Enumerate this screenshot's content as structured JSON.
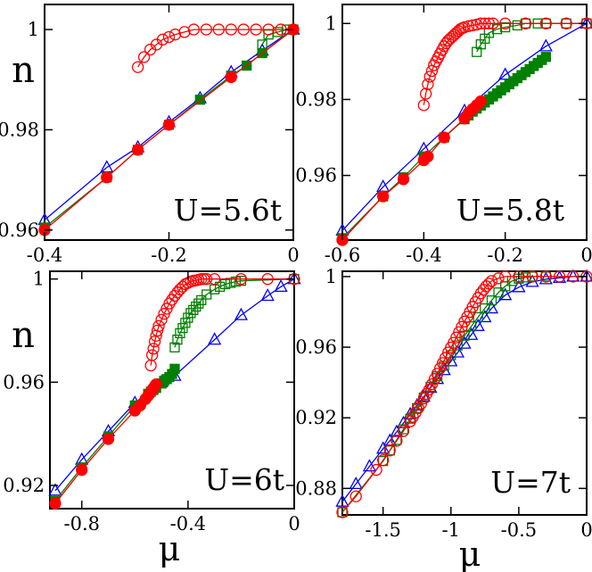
{
  "chart_data": [
    {
      "type": "line",
      "label": "U=5.6t",
      "xlim": [
        -0.4,
        0
      ],
      "ylim": [
        0.958,
        1.005
      ],
      "xticks": [
        -0.4,
        -0.2,
        0
      ],
      "xtick_labels": [
        "-0.4",
        "-0.2",
        "0"
      ],
      "yticks": [
        0.96,
        0.98,
        1.0
      ],
      "ytick_labels": [
        "0.96",
        "0.98",
        "1"
      ],
      "ylabel": "n",
      "xlabel": "",
      "series": [
        {
          "name": "blue open triangles",
          "color": "#0000ff",
          "marker": "triangle",
          "filled": false,
          "x": [
            -0.4,
            -0.3,
            -0.25,
            -0.2,
            -0.15,
            -0.1,
            -0.05,
            0
          ],
          "y": [
            0.962,
            0.9725,
            0.9765,
            0.9815,
            0.9863,
            0.9915,
            0.9958,
            1.0
          ]
        },
        {
          "name": "green filled squares",
          "color": "#008000",
          "marker": "square",
          "filled": true,
          "x": [
            -0.4,
            -0.3,
            -0.25,
            -0.2,
            -0.15,
            -0.1,
            -0.075,
            -0.05,
            0
          ],
          "y": [
            0.9605,
            0.9705,
            0.976,
            0.981,
            0.986,
            0.9908,
            0.9928,
            0.9953,
            1.0
          ]
        },
        {
          "name": "green open squares",
          "color": "#008000",
          "marker": "square",
          "filled": false,
          "x": [
            -0.05,
            -0.04,
            -0.025,
            -0.01,
            0
          ],
          "y": [
            0.997,
            0.999,
            0.9995,
            1.0,
            1.0
          ]
        },
        {
          "name": "red filled circles",
          "color": "#ff0000",
          "marker": "circle",
          "filled": true,
          "x": [
            -0.4,
            -0.3,
            -0.25,
            -0.2,
            -0.1,
            0
          ],
          "y": [
            0.96,
            0.9705,
            0.976,
            0.981,
            0.9905,
            1.0
          ]
        },
        {
          "name": "red open circles",
          "color": "#ff0000",
          "marker": "circle",
          "filled": false,
          "x": [
            -0.25,
            -0.24,
            -0.23,
            -0.22,
            -0.21,
            -0.2,
            -0.19,
            -0.175,
            -0.16,
            -0.14,
            -0.12,
            -0.1,
            -0.08,
            -0.06,
            -0.04,
            -0.02,
            0
          ],
          "y": [
            0.9925,
            0.9945,
            0.996,
            0.997,
            0.998,
            0.9985,
            0.999,
            0.9995,
            1.0,
            1.0,
            1.0,
            1.0,
            1.0,
            1.0,
            1.0,
            1.0,
            1.0
          ]
        }
      ]
    },
    {
      "type": "line",
      "label": "U=5.8t",
      "xlim": [
        -0.6,
        0
      ],
      "ylim": [
        0.943,
        1.005
      ],
      "xticks": [
        -0.6,
        -0.4,
        -0.2,
        0
      ],
      "xtick_labels": [
        "-0.6",
        "-0.4",
        "-0.2",
        "0"
      ],
      "yticks": [
        0.96,
        0.98,
        1.0
      ],
      "ytick_labels": [
        "0.96",
        "0.98",
        "1"
      ],
      "ylabel": "",
      "xlabel": "",
      "series": [
        {
          "name": "blue open triangles",
          "color": "#0000ff",
          "marker": "triangle",
          "filled": false,
          "x": [
            -0.6,
            -0.5,
            -0.4,
            -0.3,
            -0.2,
            -0.1,
            0
          ],
          "y": [
            0.9455,
            0.957,
            0.967,
            0.977,
            0.9865,
            0.994,
            1.0
          ]
        },
        {
          "name": "green filled squares",
          "color": "#008000",
          "marker": "square",
          "filled": true,
          "x": [
            -0.6,
            -0.5,
            -0.45,
            -0.4,
            -0.35,
            -0.3,
            -0.29,
            -0.28,
            -0.27,
            -0.26,
            -0.25,
            -0.24,
            -0.23,
            -0.22,
            -0.21,
            -0.2,
            -0.19,
            -0.18,
            -0.17,
            -0.16,
            -0.15,
            -0.14,
            -0.13,
            -0.12,
            -0.11,
            -0.1
          ],
          "y": [
            0.9435,
            0.9545,
            0.9595,
            0.965,
            0.97,
            0.9748,
            0.9758,
            0.9768,
            0.9776,
            0.9784,
            0.9792,
            0.98,
            0.9808,
            0.9816,
            0.9824,
            0.9832,
            0.984,
            0.9848,
            0.9856,
            0.9864,
            0.9872,
            0.988,
            0.9888,
            0.9896,
            0.9904,
            0.9912
          ]
        },
        {
          "name": "green open squares",
          "color": "#008000",
          "marker": "square",
          "filled": false,
          "x": [
            -0.27,
            -0.26,
            -0.25,
            -0.24,
            -0.22,
            -0.2,
            -0.17,
            -0.15,
            -0.12,
            -0.1,
            -0.05,
            0
          ],
          "y": [
            0.9925,
            0.9945,
            0.996,
            0.9975,
            0.9985,
            0.999,
            0.9995,
            1.0,
            1.0,
            1.0,
            1.0,
            1.0
          ]
        },
        {
          "name": "red filled circles",
          "color": "#ff0000",
          "marker": "circle",
          "filled": true,
          "x": [
            -0.6,
            -0.5,
            -0.45,
            -0.4,
            -0.39,
            -0.35,
            -0.3,
            -0.29,
            -0.28,
            -0.27,
            -0.26
          ],
          "y": [
            0.943,
            0.9545,
            0.959,
            0.964,
            0.965,
            0.97,
            0.975,
            0.9765,
            0.9775,
            0.9785,
            0.9795
          ]
        },
        {
          "name": "red open circles",
          "color": "#ff0000",
          "marker": "circle",
          "filled": false,
          "x": [
            -0.4,
            -0.395,
            -0.39,
            -0.385,
            -0.38,
            -0.375,
            -0.37,
            -0.365,
            -0.36,
            -0.355,
            -0.35,
            -0.345,
            -0.34,
            -0.335,
            -0.33,
            -0.325,
            -0.32,
            -0.315,
            -0.31,
            -0.305,
            -0.3,
            -0.29,
            -0.28,
            -0.27,
            -0.26,
            -0.25,
            -0.24,
            -0.23,
            -0.2,
            -0.15,
            -0.1,
            -0.05,
            0
          ],
          "y": [
            0.9785,
            0.9815,
            0.984,
            0.986,
            0.9875,
            0.989,
            0.99,
            0.991,
            0.992,
            0.993,
            0.994,
            0.9948,
            0.9955,
            0.996,
            0.9965,
            0.997,
            0.9975,
            0.998,
            0.9985,
            0.9988,
            0.999,
            0.9993,
            0.9995,
            0.9997,
            1.0,
            1.0,
            1.0,
            1.0,
            1.0,
            1.0,
            1.0,
            1.0,
            1.0
          ]
        }
      ]
    },
    {
      "type": "line",
      "label": "U=6t",
      "xlim": [
        -0.92,
        0
      ],
      "ylim": [
        0.911,
        1.003
      ],
      "xticks": [
        -0.8,
        -0.4,
        0
      ],
      "xtick_labels": [
        "-0.8",
        "-0.4",
        "0"
      ],
      "yticks": [
        0.92,
        0.96,
        1.0
      ],
      "ytick_labels": [
        "0.92",
        "0.96",
        "1"
      ],
      "ylabel": "n",
      "xlabel": "μ",
      "series": [
        {
          "name": "blue open triangles",
          "color": "#0000ff",
          "marker": "triangle",
          "filled": false,
          "x": [
            -0.9,
            -0.8,
            -0.7,
            -0.6,
            -0.5,
            -0.45,
            -0.3,
            -0.2,
            -0.1,
            -0.05,
            0
          ],
          "y": [
            0.918,
            0.93,
            0.941,
            0.952,
            0.96,
            0.9625,
            0.9765,
            0.986,
            0.9935,
            0.997,
            1.0
          ]
        },
        {
          "name": "green filled squares",
          "color": "#008000",
          "marker": "square",
          "filled": true,
          "x": [
            -0.9,
            -0.8,
            -0.7,
            -0.6,
            -0.55,
            -0.54,
            -0.53,
            -0.52,
            -0.5,
            -0.49,
            -0.48,
            -0.47,
            -0.46,
            -0.45
          ],
          "y": [
            0.914,
            0.927,
            0.939,
            0.951,
            0.9555,
            0.9563,
            0.957,
            0.9578,
            0.9595,
            0.9605,
            0.9612,
            0.962,
            0.9632,
            0.9652
          ]
        },
        {
          "name": "green open squares",
          "color": "#008000",
          "marker": "square",
          "filled": false,
          "x": [
            -0.45,
            -0.44,
            -0.43,
            -0.42,
            -0.41,
            -0.4,
            -0.39,
            -0.38,
            -0.37,
            -0.36,
            -0.35,
            -0.33,
            -0.3,
            -0.28,
            -0.26,
            -0.24,
            -0.22,
            -0.2,
            0
          ],
          "y": [
            0.9735,
            0.9765,
            0.979,
            0.981,
            0.983,
            0.985,
            0.9868,
            0.988,
            0.9893,
            0.9905,
            0.9918,
            0.994,
            0.996,
            0.997,
            0.998,
            0.9985,
            0.999,
            0.9993,
            1.0
          ]
        },
        {
          "name": "red filled circles",
          "color": "#ff0000",
          "marker": "circle",
          "filled": true,
          "x": [
            -0.9,
            -0.8,
            -0.7,
            -0.6,
            -0.58,
            -0.56,
            -0.55,
            -0.545,
            -0.54,
            -0.535,
            -0.53,
            -0.525,
            -0.52
          ],
          "y": [
            0.913,
            0.926,
            0.938,
            0.949,
            0.951,
            0.9535,
            0.9548,
            0.9555,
            0.9563,
            0.957,
            0.9577,
            0.9585,
            0.9592
          ]
        },
        {
          "name": "red open circles",
          "color": "#ff0000",
          "marker": "circle",
          "filled": false,
          "x": [
            -0.54,
            -0.535,
            -0.53,
            -0.525,
            -0.52,
            -0.515,
            -0.51,
            -0.5,
            -0.49,
            -0.48,
            -0.47,
            -0.46,
            -0.45,
            -0.44,
            -0.43,
            -0.42,
            -0.41,
            -0.4,
            -0.39,
            -0.38,
            -0.37,
            -0.36,
            -0.35,
            -0.34,
            -0.33,
            -0.3,
            -0.2,
            -0.1,
            0
          ],
          "y": [
            0.9665,
            0.9705,
            0.973,
            0.9758,
            0.978,
            0.98,
            0.9818,
            0.9842,
            0.9865,
            0.9885,
            0.9905,
            0.992,
            0.9935,
            0.9948,
            0.996,
            0.997,
            0.998,
            0.9985,
            0.999,
            0.9993,
            0.9995,
            0.9997,
            1.0,
            1.0,
            1.0,
            1.0,
            1.0,
            1.0,
            1.0
          ]
        }
      ]
    },
    {
      "type": "line",
      "label": "U=7t",
      "xlim": [
        -1.8,
        0
      ],
      "ylim": [
        0.865,
        1.003
      ],
      "xticks": [
        -1.5,
        -1.0,
        -0.5,
        0
      ],
      "xtick_labels": [
        "-1.5",
        "-1",
        "-0.5",
        "0"
      ],
      "yticks": [
        0.88,
        0.92,
        0.96,
        1.0
      ],
      "ytick_labels": [
        "0.88",
        "0.92",
        "0.96",
        "1"
      ],
      "ylabel": "",
      "xlabel": "μ",
      "series": [
        {
          "name": "blue open triangles",
          "color": "#0000ff",
          "marker": "triangle",
          "filled": false,
          "x": [
            -1.8,
            -1.7,
            -1.6,
            -1.5,
            -1.45,
            -1.4,
            -1.35,
            -1.3,
            -1.25,
            -1.2,
            -1.15,
            -1.1,
            -1.05,
            -1.0,
            -0.95,
            -0.9,
            -0.85,
            -0.8,
            -0.75,
            -0.7,
            -0.6,
            -0.5,
            -0.4,
            -0.3,
            -0.2,
            -0.1,
            0
          ],
          "y": [
            0.8725,
            0.8825,
            0.8925,
            0.9025,
            0.907,
            0.912,
            0.917,
            0.922,
            0.927,
            0.932,
            0.937,
            0.942,
            0.947,
            0.952,
            0.957,
            0.962,
            0.967,
            0.972,
            0.977,
            0.982,
            0.9895,
            0.994,
            0.997,
            0.9985,
            0.9993,
            1.0,
            1.0
          ]
        },
        {
          "name": "green open squares",
          "color": "#008000",
          "marker": "square",
          "filled": false,
          "x": [
            -1.8,
            -1.5,
            -1.45,
            -1.4,
            -1.35,
            -1.3,
            -1.25,
            -1.2,
            -1.15,
            -1.1,
            -1.05,
            -1.0,
            -0.95,
            -0.9,
            -0.85,
            -0.8,
            -0.75,
            -0.7,
            -0.65,
            -0.6,
            -0.55,
            -0.5,
            -0.45,
            -0.4,
            -0.3
          ],
          "y": [
            0.8665,
            0.8955,
            0.9015,
            0.9075,
            0.9135,
            0.9195,
            0.9255,
            0.9315,
            0.9375,
            0.9435,
            0.9495,
            0.9555,
            0.961,
            0.9665,
            0.9718,
            0.977,
            0.982,
            0.9865,
            0.991,
            0.9945,
            0.9975,
            0.9988,
            0.9995,
            1.0,
            1.0
          ]
        },
        {
          "name": "red open circles",
          "color": "#ff0000",
          "marker": "circle",
          "filled": false,
          "x": [
            -1.8,
            -1.7,
            -1.55,
            -1.5,
            -1.45,
            -1.4,
            -1.35,
            -1.3,
            -1.28,
            -1.26,
            -1.24,
            -1.22,
            -1.2,
            -1.18,
            -1.16,
            -1.14,
            -1.12,
            -1.1,
            -1.08,
            -1.06,
            -1.04,
            -1.02,
            -1.0,
            -0.98,
            -0.96,
            -0.94,
            -0.92,
            -0.9,
            -0.88,
            -0.86,
            -0.84,
            -0.82,
            -0.8,
            -0.78,
            -0.76,
            -0.74,
            -0.72,
            -0.7,
            -0.65,
            -0.6,
            -0.5,
            -0.4,
            -0.3,
            -0.2,
            -0.1,
            0
          ],
          "y": [
            0.8665,
            0.8755,
            0.8905,
            0.896,
            0.9015,
            0.907,
            0.9125,
            0.918,
            0.9205,
            0.923,
            0.9255,
            0.928,
            0.931,
            0.9335,
            0.936,
            0.939,
            0.942,
            0.945,
            0.948,
            0.951,
            0.954,
            0.957,
            0.9598,
            0.9625,
            0.9655,
            0.9685,
            0.9715,
            0.9745,
            0.9772,
            0.98,
            0.9828,
            0.9855,
            0.988,
            0.9905,
            0.9925,
            0.9945,
            0.996,
            0.9975,
            0.999,
            1.0,
            1.0,
            1.0,
            1.0,
            1.0,
            1.0,
            1.0
          ]
        }
      ]
    }
  ]
}
